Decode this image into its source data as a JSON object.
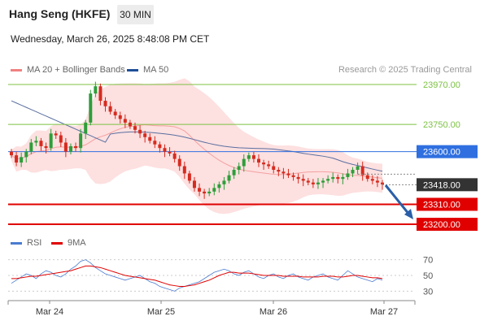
{
  "header": {
    "title": "Hang Seng (HKFE)",
    "timeframe": "30 MIN"
  },
  "datetime": "Wednesday, March 26, 2025 8:48:08 PM CET",
  "credit": "Research © 2025 Trading Central",
  "legend": {
    "ma20": {
      "label": "MA 20 + Bollinger Bands",
      "color": "#f08080"
    },
    "ma50": {
      "label": "MA 50",
      "color": "#1f4e99"
    },
    "rsi": {
      "label": "RSI",
      "color": "#4a7bd0"
    },
    "ma9": {
      "label": "9MA",
      "color": "#e00000"
    }
  },
  "colors": {
    "up": "#2e9e3a",
    "down": "#d62b1f",
    "band_fill": "#fde0e0",
    "resistance_green": "#7cc242",
    "pivot_blue": "#2f6fe0",
    "support_red": "#e00000",
    "current_bg": "#333333",
    "arrow": "#2a5fa8"
  },
  "chart_data": {
    "type": "candlestick",
    "x_ticks": [
      "Mar 24",
      "Mar 25",
      "Mar 26",
      "Mar 27"
    ],
    "ylim": [
      23160,
      24010
    ],
    "levels": [
      {
        "name": "resistance-2",
        "value": 23970.0,
        "label": "23970.00",
        "color": "#7cc242"
      },
      {
        "name": "resistance-1",
        "value": 23750.0,
        "label": "23750.00",
        "color": "#7cc242"
      },
      {
        "name": "pivot",
        "value": 23600.0,
        "label": "23600.00",
        "color": "#2f6fe0"
      },
      {
        "name": "support-1",
        "value": 23310.0,
        "label": "23310.00",
        "color": "#e00000"
      },
      {
        "name": "support-2",
        "value": 23200.0,
        "label": "23200.00",
        "color": "#e00000"
      }
    ],
    "current_price": {
      "value": 23418.0,
      "label": "23418.00"
    },
    "candles_close": [
      23580,
      23540,
      23570,
      23600,
      23650,
      23660,
      23630,
      23620,
      23700,
      23690,
      23650,
      23600,
      23630,
      23620,
      23700,
      23760,
      23920,
      23960,
      23880,
      23850,
      23820,
      23800,
      23780,
      23760,
      23740,
      23720,
      23700,
      23680,
      23660,
      23640,
      23620,
      23600,
      23590,
      23560,
      23520,
      23480,
      23440,
      23400,
      23380,
      23370,
      23380,
      23400,
      23420,
      23440,
      23470,
      23500,
      23520,
      23560,
      23580,
      23560,
      23540,
      23530,
      23520,
      23500,
      23490,
      23480,
      23470,
      23460,
      23450,
      23440,
      23430,
      23420,
      23430,
      23440,
      23450,
      23460,
      23450,
      23460,
      23480,
      23500,
      23520,
      23470,
      23450,
      23440,
      23430,
      23420
    ],
    "rsi": {
      "ylim": [
        20,
        80
      ],
      "ticks": [
        70,
        50,
        30
      ],
      "rsi_values": [
        40,
        44,
        48,
        52,
        50,
        46,
        52,
        56,
        54,
        50,
        48,
        52,
        58,
        62,
        68,
        70,
        66,
        60,
        56,
        52,
        50,
        48,
        46,
        44,
        46,
        48,
        50,
        46,
        42,
        40,
        36,
        34,
        32,
        30,
        34,
        36,
        38,
        40,
        42,
        46,
        50,
        54,
        56,
        58,
        56,
        52,
        50,
        54,
        56,
        52,
        48,
        46,
        50,
        52,
        48,
        46,
        50,
        52,
        48,
        46,
        44,
        48,
        50,
        52,
        48,
        46,
        44,
        50,
        56,
        52,
        48,
        46,
        44,
        42,
        46,
        44
      ],
      "ma9_values": [
        46,
        46,
        47,
        48,
        49,
        49,
        50,
        51,
        52,
        53,
        54,
        55,
        56,
        58,
        60,
        62,
        62,
        61,
        60,
        58,
        56,
        54,
        52,
        50,
        49,
        48,
        47,
        46,
        45,
        44,
        42,
        40,
        38,
        37,
        36,
        36,
        37,
        38,
        40,
        42,
        44,
        47,
        50,
        52,
        54,
        54,
        53,
        53,
        53,
        52,
        51,
        50,
        50,
        50,
        50,
        49,
        49,
        49,
        49,
        48,
        48,
        48,
        48,
        49,
        49,
        49,
        48,
        48,
        49,
        50,
        50,
        49,
        48,
        47,
        47,
        46
      ]
    }
  }
}
